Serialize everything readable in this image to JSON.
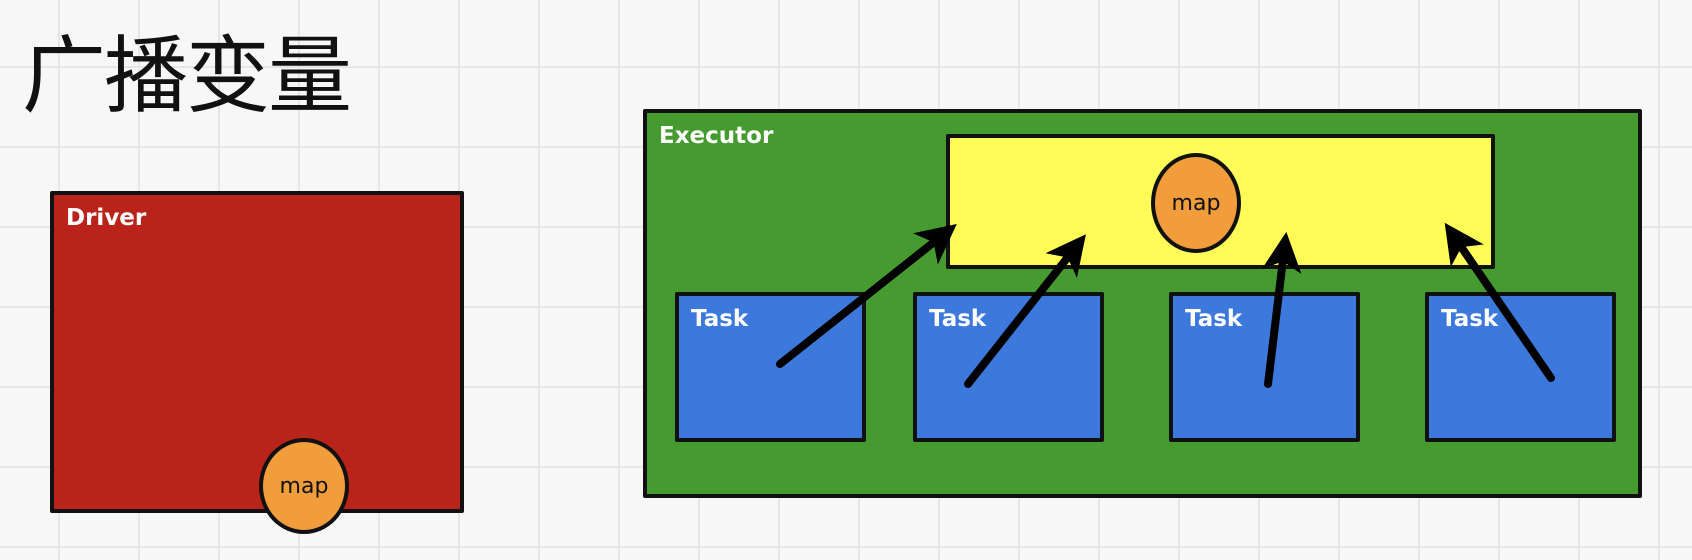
{
  "title": "广播变量",
  "colors": {
    "driver": "#b9231a",
    "executor": "#469b30",
    "shared_memory": "#fffb57",
    "task": "#3d78dc",
    "map": "#f29d3b",
    "outline": "#111111"
  },
  "driver": {
    "label": "Driver",
    "map_label": "map"
  },
  "executor": {
    "label": "Executor",
    "map_label": "map",
    "tasks": [
      {
        "label": "Task"
      },
      {
        "label": "Task"
      },
      {
        "label": "Task"
      },
      {
        "label": "Task"
      }
    ]
  }
}
